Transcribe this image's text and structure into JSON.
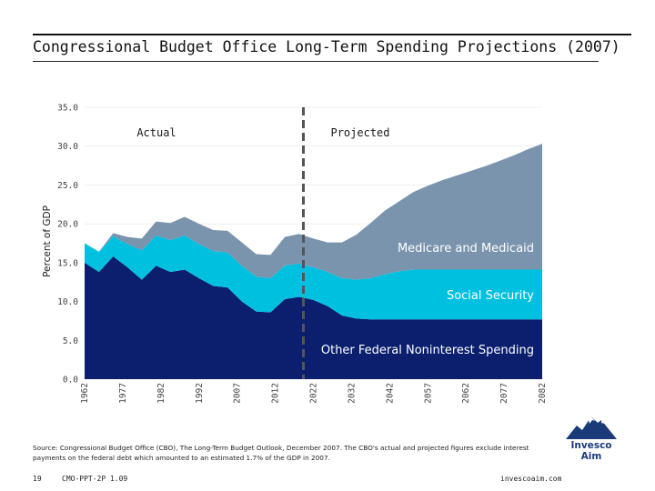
{
  "header": {
    "title": "Congressional Budget Office Long-Term Spending Projections (2007)"
  },
  "chart_data": {
    "type": "area",
    "stacked": true,
    "ylabel": "Percent of GDP",
    "ylim": [
      0,
      35
    ],
    "y_ticks": [
      "0.0",
      "5.0",
      "10.0",
      "15.0",
      "20.0",
      "25.0",
      "30.0",
      "35.0"
    ],
    "x_tick_labels": [
      "1962",
      "1977",
      "1982",
      "1992",
      "2007",
      "2012",
      "2022",
      "2032",
      "2042",
      "2057",
      "2062",
      "2077",
      "2082"
    ],
    "annotations": {
      "actual": "Actual",
      "projected": "Projected"
    },
    "series": [
      {
        "name": "Other Federal Noninterest Spending",
        "color": "#0b1f6e",
        "values": [
          15.0,
          13.8,
          15.8,
          14.4,
          12.8,
          14.6,
          13.8,
          14.1,
          13.0,
          12.0,
          11.8,
          10.0,
          8.7,
          8.6,
          10.3,
          10.6,
          10.2,
          9.4,
          8.2,
          7.8,
          7.7,
          7.7,
          7.7,
          7.7,
          7.7,
          7.7,
          7.7,
          7.7,
          7.7,
          7.7,
          7.7,
          7.7,
          7.7
        ]
      },
      {
        "name": "Social Security",
        "color": "#00c0e0",
        "values": [
          2.5,
          2.6,
          2.6,
          3.0,
          3.8,
          3.9,
          4.1,
          4.4,
          4.4,
          4.5,
          4.5,
          4.6,
          4.5,
          4.4,
          4.3,
          4.3,
          4.2,
          4.4,
          4.8,
          5.0,
          5.3,
          5.8,
          6.2,
          6.4,
          6.4,
          6.4,
          6.4,
          6.4,
          6.4,
          6.4,
          6.4,
          6.4,
          6.4
        ]
      },
      {
        "name": "Medicare and Medicaid",
        "color": "#7a94ae",
        "values": [
          0.0,
          0.0,
          0.4,
          0.9,
          1.5,
          1.8,
          2.2,
          2.4,
          2.6,
          2.7,
          2.8,
          3.0,
          2.9,
          3.0,
          3.7,
          3.8,
          3.7,
          3.8,
          4.6,
          5.8,
          7.1,
          8.2,
          9.0,
          10.0,
          10.8,
          11.5,
          12.1,
          12.7,
          13.3,
          14.0,
          14.7,
          15.5,
          16.2
        ]
      }
    ],
    "divider_index": 15.3
  },
  "source": "Source: Congressional Budget Office (CBO), The Long-Term Budget Outlook, December 2007. The CBO's actual and projected figures exclude interest payments on the federal debt which amounted to an estimated 1.7% of the GDP in 2007.",
  "footer": {
    "page_number": "19",
    "code": "CMO-PPT-2P 1.09",
    "website": "invescoaim.com"
  },
  "logo": {
    "line1": "Invesco",
    "line2": "Aim"
  }
}
